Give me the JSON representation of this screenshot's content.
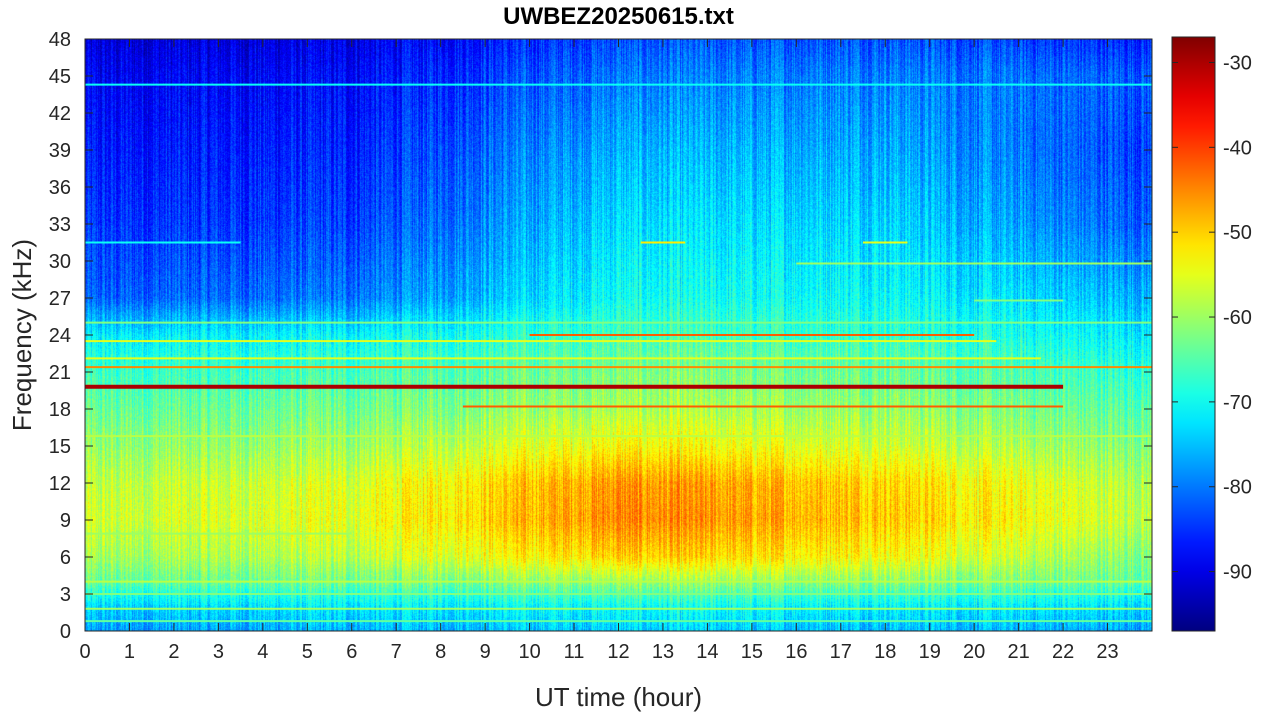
{
  "chart_data": {
    "type": "heatmap",
    "title": "UWBEZ20250615.txt",
    "xlabel": "UT time (hour)",
    "ylabel": "Frequency (kHz)",
    "xlim": [
      0,
      24
    ],
    "ylim": [
      0,
      48
    ],
    "x_ticks": [
      0,
      1,
      2,
      3,
      4,
      5,
      6,
      7,
      8,
      9,
      10,
      11,
      12,
      13,
      14,
      15,
      16,
      17,
      18,
      19,
      20,
      21,
      22,
      23
    ],
    "y_ticks": [
      0,
      3,
      6,
      9,
      12,
      15,
      18,
      21,
      24,
      27,
      30,
      33,
      36,
      39,
      42,
      45,
      48
    ],
    "colormap": "jet",
    "colorbar": {
      "ticks": [
        -90,
        -80,
        -70,
        -60,
        -50,
        -40,
        -30
      ],
      "limits": [
        -97,
        -27
      ]
    },
    "background_levels_db": [
      {
        "f_khz": 0,
        "t_0": -78,
        "t_6": -76,
        "t_12": -74,
        "t_18": -75,
        "t_24": -77
      },
      {
        "f_khz": 2,
        "t_0": -74,
        "t_6": -72,
        "t_12": -70,
        "t_18": -71,
        "t_24": -73
      },
      {
        "f_khz": 4,
        "t_0": -64,
        "t_6": -63,
        "t_12": -60,
        "t_18": -61,
        "t_24": -64
      },
      {
        "f_khz": 6,
        "t_0": -60,
        "t_6": -58,
        "t_12": -50,
        "t_18": -53,
        "t_24": -62
      },
      {
        "f_khz": 9,
        "t_0": -57,
        "t_6": -55,
        "t_12": -45,
        "t_18": -49,
        "t_24": -58
      },
      {
        "f_khz": 12,
        "t_0": -58,
        "t_6": -56,
        "t_12": -46,
        "t_18": -50,
        "t_24": -59
      },
      {
        "f_khz": 15,
        "t_0": -61,
        "t_6": -60,
        "t_12": -53,
        "t_18": -56,
        "t_24": -62
      },
      {
        "f_khz": 18,
        "t_0": -64,
        "t_6": -63,
        "t_12": -59,
        "t_18": -60,
        "t_24": -65
      },
      {
        "f_khz": 21,
        "t_0": -67,
        "t_6": -66,
        "t_12": -62,
        "t_18": -63,
        "t_24": -68
      },
      {
        "f_khz": 24,
        "t_0": -72,
        "t_6": -71,
        "t_12": -66,
        "t_18": -67,
        "t_24": -72
      },
      {
        "f_khz": 27,
        "t_0": -82,
        "t_6": -80,
        "t_12": -70,
        "t_18": -70,
        "t_24": -76
      },
      {
        "f_khz": 33,
        "t_0": -85,
        "t_6": -84,
        "t_12": -73,
        "t_18": -73,
        "t_24": -82
      },
      {
        "f_khz": 39,
        "t_0": -87,
        "t_6": -86,
        "t_12": -76,
        "t_18": -76,
        "t_24": -84
      },
      {
        "f_khz": 45,
        "t_0": -89,
        "t_6": -88,
        "t_12": -80,
        "t_18": -79,
        "t_24": -82
      },
      {
        "f_khz": 48,
        "t_0": -91,
        "t_6": -90,
        "t_12": -83,
        "t_18": -82,
        "t_24": -86
      }
    ],
    "transmitter_lines": [
      {
        "f_khz": 19.8,
        "t_start": 0,
        "t_end": 22,
        "db": -30
      },
      {
        "f_khz": 18.2,
        "t_start": 8.5,
        "t_end": 22,
        "db": -42
      },
      {
        "f_khz": 21.4,
        "t_start": 0,
        "t_end": 24,
        "db": -45
      },
      {
        "f_khz": 24.0,
        "t_start": 10,
        "t_end": 20,
        "db": -42
      },
      {
        "f_khz": 22.1,
        "t_start": 0,
        "t_end": 21.5,
        "db": -55
      },
      {
        "f_khz": 23.5,
        "t_start": 0,
        "t_end": 20.5,
        "db": -55
      },
      {
        "f_khz": 25.0,
        "t_start": 0,
        "t_end": 24,
        "db": -62
      },
      {
        "f_khz": 44.3,
        "t_start": 0,
        "t_end": 24,
        "db": -70
      },
      {
        "f_khz": 31.5,
        "t_start": 0,
        "t_end": 3.5,
        "db": -70
      },
      {
        "f_khz": 31.5,
        "t_start": 12.5,
        "t_end": 13.5,
        "db": -52
      },
      {
        "f_khz": 31.5,
        "t_start": 17.5,
        "t_end": 18.5,
        "db": -55
      },
      {
        "f_khz": 29.8,
        "t_start": 16,
        "t_end": 24,
        "db": -60
      },
      {
        "f_khz": 26.8,
        "t_start": 20,
        "t_end": 22,
        "db": -62
      },
      {
        "f_khz": 4.0,
        "t_start": 0,
        "t_end": 24,
        "db": -58
      },
      {
        "f_khz": 3.0,
        "t_start": 0,
        "t_end": 24,
        "db": -62
      },
      {
        "f_khz": 1.8,
        "t_start": 0,
        "t_end": 24,
        "db": -60
      },
      {
        "f_khz": 0.8,
        "t_start": 0,
        "t_end": 24,
        "db": -64
      },
      {
        "f_khz": 7.9,
        "t_start": 0,
        "t_end": 6,
        "db": -60
      },
      {
        "f_khz": 15.8,
        "t_start": 0,
        "t_end": 24,
        "db": -58
      }
    ]
  }
}
